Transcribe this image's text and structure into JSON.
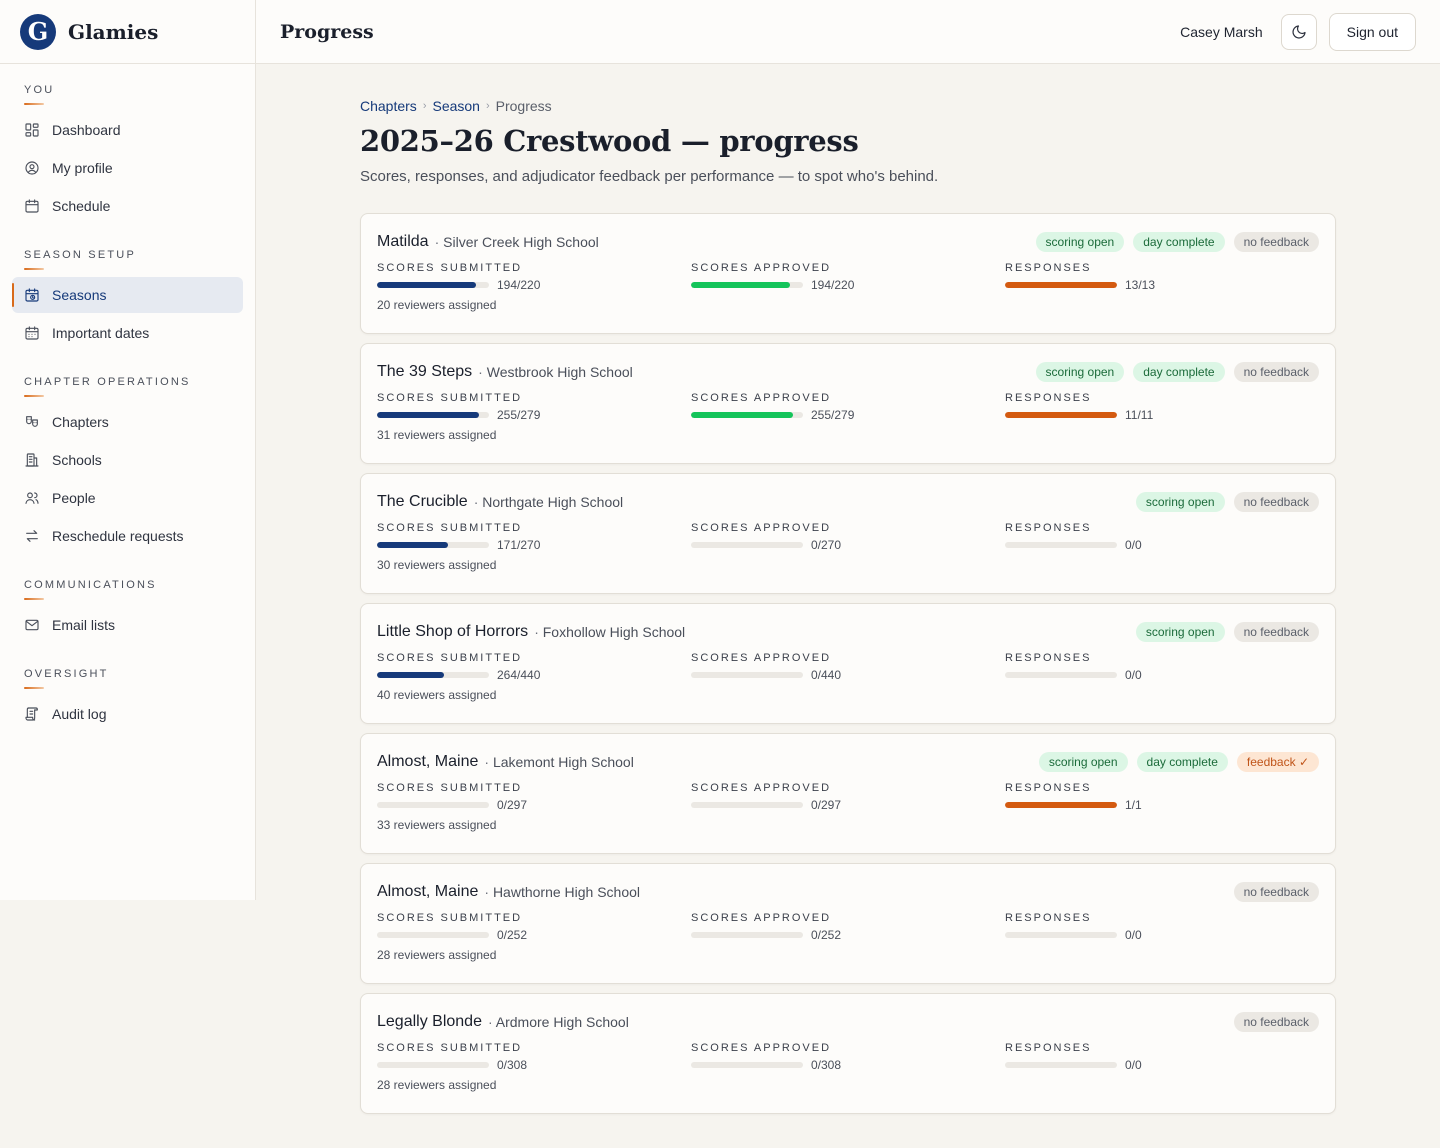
{
  "brand": {
    "name": "Glamies",
    "logo_letter": "G"
  },
  "sidebar": {
    "sections": [
      {
        "label": "You",
        "items": [
          {
            "label": "Dashboard",
            "icon": "dashboard-icon",
            "active": false
          },
          {
            "label": "My profile",
            "icon": "user-circle-icon",
            "active": false
          },
          {
            "label": "Schedule",
            "icon": "calendar-icon",
            "active": false
          }
        ]
      },
      {
        "label": "Season setup",
        "items": [
          {
            "label": "Seasons",
            "icon": "calendar-clock-icon",
            "active": true
          },
          {
            "label": "Important dates",
            "icon": "calendar-grid-icon",
            "active": false
          }
        ]
      },
      {
        "label": "Chapter operations",
        "items": [
          {
            "label": "Chapters",
            "icon": "theater-icon",
            "active": false
          },
          {
            "label": "Schools",
            "icon": "building-icon",
            "active": false
          },
          {
            "label": "People",
            "icon": "people-icon",
            "active": false
          },
          {
            "label": "Reschedule requests",
            "icon": "swap-arrows-icon",
            "active": false
          }
        ]
      },
      {
        "label": "Communications",
        "items": [
          {
            "label": "Email lists",
            "icon": "mail-icon",
            "active": false
          }
        ]
      },
      {
        "label": "Oversight",
        "items": [
          {
            "label": "Audit log",
            "icon": "scroll-icon",
            "active": false
          }
        ]
      }
    ]
  },
  "header": {
    "title": "Progress",
    "user_name": "Casey Marsh",
    "theme_icon": "moon-icon",
    "signout_label": "Sign out"
  },
  "breadcrumb": [
    {
      "label": "Chapters",
      "link": true
    },
    {
      "label": "Season",
      "link": true
    },
    {
      "label": "Progress",
      "link": false
    }
  ],
  "page": {
    "title": "2025–26 Crestwood — progress",
    "subtitle": "Scores, responses, and adjudicator feedback per performance — to spot who's behind."
  },
  "metric_labels": {
    "submitted": "Scores submitted",
    "approved": "Scores approved",
    "responses": "Responses"
  },
  "performances": [
    {
      "title": "Matilda",
      "school": "Silver Creek High School",
      "badges": [
        {
          "label": "scoring open",
          "tone": "green"
        },
        {
          "label": "day complete",
          "tone": "green"
        },
        {
          "label": "no feedback",
          "tone": "gray"
        }
      ],
      "submitted": {
        "done": 194,
        "total": 220,
        "text": "194/220"
      },
      "approved": {
        "done": 194,
        "total": 220,
        "text": "194/220"
      },
      "responses": {
        "done": 13,
        "total": 13,
        "text": "13/13"
      },
      "reviewers": "20 reviewers assigned"
    },
    {
      "title": "The 39 Steps",
      "school": "Westbrook High School",
      "badges": [
        {
          "label": "scoring open",
          "tone": "green"
        },
        {
          "label": "day complete",
          "tone": "green"
        },
        {
          "label": "no feedback",
          "tone": "gray"
        }
      ],
      "submitted": {
        "done": 255,
        "total": 279,
        "text": "255/279"
      },
      "approved": {
        "done": 255,
        "total": 279,
        "text": "255/279"
      },
      "responses": {
        "done": 11,
        "total": 11,
        "text": "11/11"
      },
      "reviewers": "31 reviewers assigned"
    },
    {
      "title": "The Crucible",
      "school": "Northgate High School",
      "badges": [
        {
          "label": "scoring open",
          "tone": "green"
        },
        {
          "label": "no feedback",
          "tone": "gray"
        }
      ],
      "submitted": {
        "done": 171,
        "total": 270,
        "text": "171/270"
      },
      "approved": {
        "done": 0,
        "total": 270,
        "text": "0/270"
      },
      "responses": {
        "done": 0,
        "total": 0,
        "text": "0/0"
      },
      "reviewers": "30 reviewers assigned"
    },
    {
      "title": "Little Shop of Horrors",
      "school": "Foxhollow High School",
      "badges": [
        {
          "label": "scoring open",
          "tone": "green"
        },
        {
          "label": "no feedback",
          "tone": "gray"
        }
      ],
      "submitted": {
        "done": 264,
        "total": 440,
        "text": "264/440"
      },
      "approved": {
        "done": 0,
        "total": 440,
        "text": "0/440"
      },
      "responses": {
        "done": 0,
        "total": 0,
        "text": "0/0"
      },
      "reviewers": "40 reviewers assigned"
    },
    {
      "title": "Almost, Maine",
      "school": "Lakemont High School",
      "badges": [
        {
          "label": "scoring open",
          "tone": "green"
        },
        {
          "label": "day complete",
          "tone": "green"
        },
        {
          "label": "feedback ✓",
          "tone": "orange"
        }
      ],
      "submitted": {
        "done": 0,
        "total": 297,
        "text": "0/297"
      },
      "approved": {
        "done": 0,
        "total": 297,
        "text": "0/297"
      },
      "responses": {
        "done": 1,
        "total": 1,
        "text": "1/1"
      },
      "reviewers": "33 reviewers assigned"
    },
    {
      "title": "Almost, Maine",
      "school": "Hawthorne High School",
      "badges": [
        {
          "label": "no feedback",
          "tone": "gray"
        }
      ],
      "submitted": {
        "done": 0,
        "total": 252,
        "text": "0/252"
      },
      "approved": {
        "done": 0,
        "total": 252,
        "text": "0/252"
      },
      "responses": {
        "done": 0,
        "total": 0,
        "text": "0/0"
      },
      "reviewers": "28 reviewers assigned"
    },
    {
      "title": "Legally Blonde",
      "school": "Ardmore High School",
      "badges": [
        {
          "label": "no feedback",
          "tone": "gray"
        }
      ],
      "submitted": {
        "done": 0,
        "total": 308,
        "text": "0/308"
      },
      "approved": {
        "done": 0,
        "total": 308,
        "text": "0/308"
      },
      "responses": {
        "done": 0,
        "total": 0,
        "text": "0/0"
      },
      "reviewers": "28 reviewers assigned"
    }
  ]
}
